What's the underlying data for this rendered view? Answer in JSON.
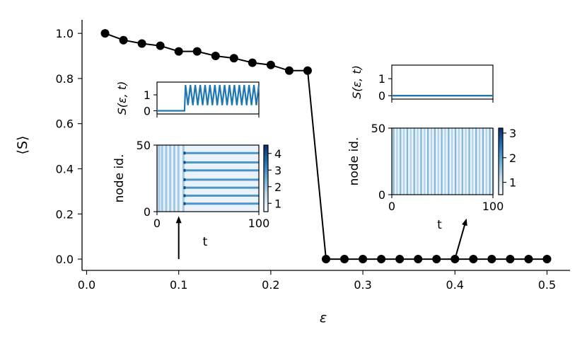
{
  "chart_data": [
    {
      "id": "main",
      "type": "line",
      "xlabel": "ε",
      "ylabel": "⟨S⟩",
      "xlim": [
        -0.005,
        0.525
      ],
      "ylim": [
        -0.05,
        1.06
      ],
      "xticks": [
        0.0,
        0.1,
        0.2,
        0.3,
        0.4,
        0.5
      ],
      "xtick_labels": [
        "0.0",
        "0.1",
        "0.2",
        "0.3",
        "0.4",
        "0.5"
      ],
      "yticks": [
        0.0,
        0.2,
        0.4,
        0.6,
        0.8,
        1.0
      ],
      "ytick_labels": [
        "0.0",
        "0.2",
        "0.4",
        "0.6",
        "0.8",
        "1.0"
      ],
      "series": [
        {
          "color": "#000000",
          "x": [
            0.02,
            0.04,
            0.06,
            0.08,
            0.1,
            0.12,
            0.14,
            0.16,
            0.18,
            0.2,
            0.22,
            0.24,
            0.26,
            0.28,
            0.3,
            0.32,
            0.34,
            0.36,
            0.38,
            0.4,
            0.42,
            0.44,
            0.46,
            0.48,
            0.5
          ],
          "y": [
            1.0,
            0.97,
            0.955,
            0.945,
            0.92,
            0.92,
            0.9,
            0.89,
            0.87,
            0.86,
            0.835,
            0.835,
            0.0,
            0.0,
            0.0,
            0.0,
            0.0,
            0.0,
            0.0,
            0.0,
            0.0,
            0.0,
            0.0,
            0.0,
            0.0
          ]
        }
      ],
      "grid": false,
      "annotations": [
        {
          "type": "arrow",
          "from": [
            0.1,
            0.0
          ],
          "to": [
            0.1,
            0.2
          ],
          "target": "left inset"
        },
        {
          "type": "arrow",
          "from": [
            0.4,
            0.0
          ],
          "to": [
            0.41,
            0.19
          ],
          "target": "right inset"
        }
      ]
    },
    {
      "id": "inset_left_timeseries",
      "type": "line",
      "ylabel": "S(ε, t)",
      "xlim": [
        0,
        100
      ],
      "ylim": [
        -0.2,
        1.8
      ],
      "yticks": [
        0,
        1
      ],
      "ytick_labels": [
        "0",
        "1"
      ],
      "series": [
        {
          "color": "#1f77b4",
          "description_values": {
            "flat_until_t": 27,
            "flat_level": 0.0,
            "oscillation_min": 0.35,
            "oscillation_max": 1.62,
            "oscillation_count": 15
          }
        }
      ]
    },
    {
      "id": "inset_left_raster",
      "type": "heatmap",
      "xlabel": "t",
      "ylabel": "node id.",
      "xlim": [
        0,
        100
      ],
      "ylim": [
        0,
        50
      ],
      "xticks": [
        0,
        100
      ],
      "xtick_labels": [
        "0",
        "100"
      ],
      "yticks": [
        0,
        50
      ],
      "ytick_labels": [
        "0",
        "50"
      ],
      "colormap": "Blues",
      "colorbar": {
        "min": 0.5,
        "max": 4.5,
        "ticks": [
          1,
          2,
          3,
          4
        ],
        "tick_labels": [
          "1",
          "2",
          "3",
          "4"
        ]
      },
      "vertical_stripe_times": [
        2,
        5,
        9,
        13,
        17,
        21,
        26
      ],
      "horizontal_band_nodes": [
        6,
        12,
        18,
        24,
        31,
        37,
        44
      ]
    },
    {
      "id": "inset_right_timeseries",
      "type": "line",
      "ylabel": "S(ε, t)",
      "xlim": [
        0,
        100
      ],
      "ylim": [
        -0.2,
        1.8
      ],
      "yticks": [
        0,
        1
      ],
      "ytick_labels": [
        "0",
        "1"
      ],
      "series": [
        {
          "color": "#1f77b4",
          "x": [
            0,
            100
          ],
          "y": [
            0.0,
            0.0
          ]
        }
      ]
    },
    {
      "id": "inset_right_raster",
      "type": "heatmap",
      "xlabel": "t",
      "ylabel": "node id.",
      "xlim": [
        0,
        100
      ],
      "ylim": [
        0,
        50
      ],
      "xticks": [
        0,
        100
      ],
      "xtick_labels": [
        "0",
        "100"
      ],
      "yticks": [
        0,
        50
      ],
      "ytick_labels": [
        "0",
        "50"
      ],
      "colormap": "Blues",
      "colorbar": {
        "min": 0.5,
        "max": 3.2,
        "ticks": [
          1,
          2,
          3
        ],
        "tick_labels": [
          "1",
          "2",
          "3"
        ]
      },
      "vertical_stripe_period": 3.4
    }
  ]
}
